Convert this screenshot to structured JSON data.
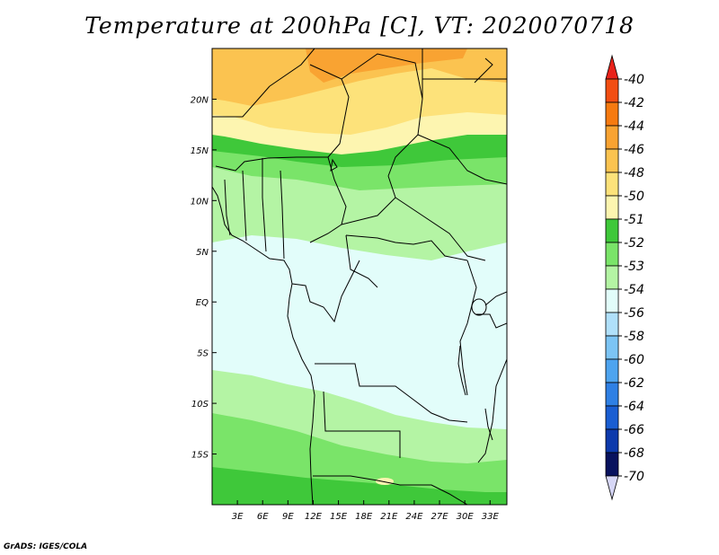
{
  "title": "Temperature at 200hPa [C], VT: 2020070718",
  "credit": "GrADS: IGES/COLA",
  "map": {
    "lon_range": [
      0,
      35
    ],
    "lat_range": [
      -20,
      25
    ],
    "x_ticks": [
      {
        "value": 3,
        "label": "3E"
      },
      {
        "value": 6,
        "label": "6E"
      },
      {
        "value": 9,
        "label": "9E"
      },
      {
        "value": 12,
        "label": "12E"
      },
      {
        "value": 15,
        "label": "15E"
      },
      {
        "value": 18,
        "label": "18E"
      },
      {
        "value": 21,
        "label": "21E"
      },
      {
        "value": 24,
        "label": "24E"
      },
      {
        "value": 27,
        "label": "27E"
      },
      {
        "value": 30,
        "label": "30E"
      },
      {
        "value": 33,
        "label": "33E"
      }
    ],
    "y_ticks": [
      {
        "value": 20,
        "label": "20N"
      },
      {
        "value": 15,
        "label": "15N"
      },
      {
        "value": 10,
        "label": "10N"
      },
      {
        "value": 5,
        "label": "5N"
      },
      {
        "value": 0,
        "label": "EQ"
      },
      {
        "value": -5,
        "label": "5S"
      },
      {
        "value": -10,
        "label": "10S"
      },
      {
        "value": -15,
        "label": "15S"
      }
    ]
  },
  "colorbar": {
    "levels": [
      "-40",
      "-42",
      "-44",
      "-46",
      "-48",
      "-50",
      "-51",
      "-52",
      "-53",
      "-54",
      "-56",
      "-58",
      "-60",
      "-62",
      "-64",
      "-66",
      "-68",
      "-70"
    ],
    "colors": [
      "#e8221a",
      "#f24e12",
      "#f67a10",
      "#f9a332",
      "#fbc350",
      "#fde27a",
      "#fdf5b0",
      "#3fc83a",
      "#7ae469",
      "#b4f4a4",
      "#e2fdfa",
      "#b0e0fa",
      "#7cc4f4",
      "#4ea4ef",
      "#2f80e4",
      "#1a5ed2",
      "#0d3aac",
      "#08125e",
      "#d6d6f6"
    ]
  },
  "field_colors": {
    "c_m46": "#f9a332",
    "c_m48": "#fbc350",
    "c_m50": "#fde27a",
    "c_m51": "#fdf5b0",
    "c_m52": "#3fc83a",
    "c_m53": "#7ae469",
    "c_m54": "#b4f4a4",
    "c_m56": "#e2fdfa"
  }
}
